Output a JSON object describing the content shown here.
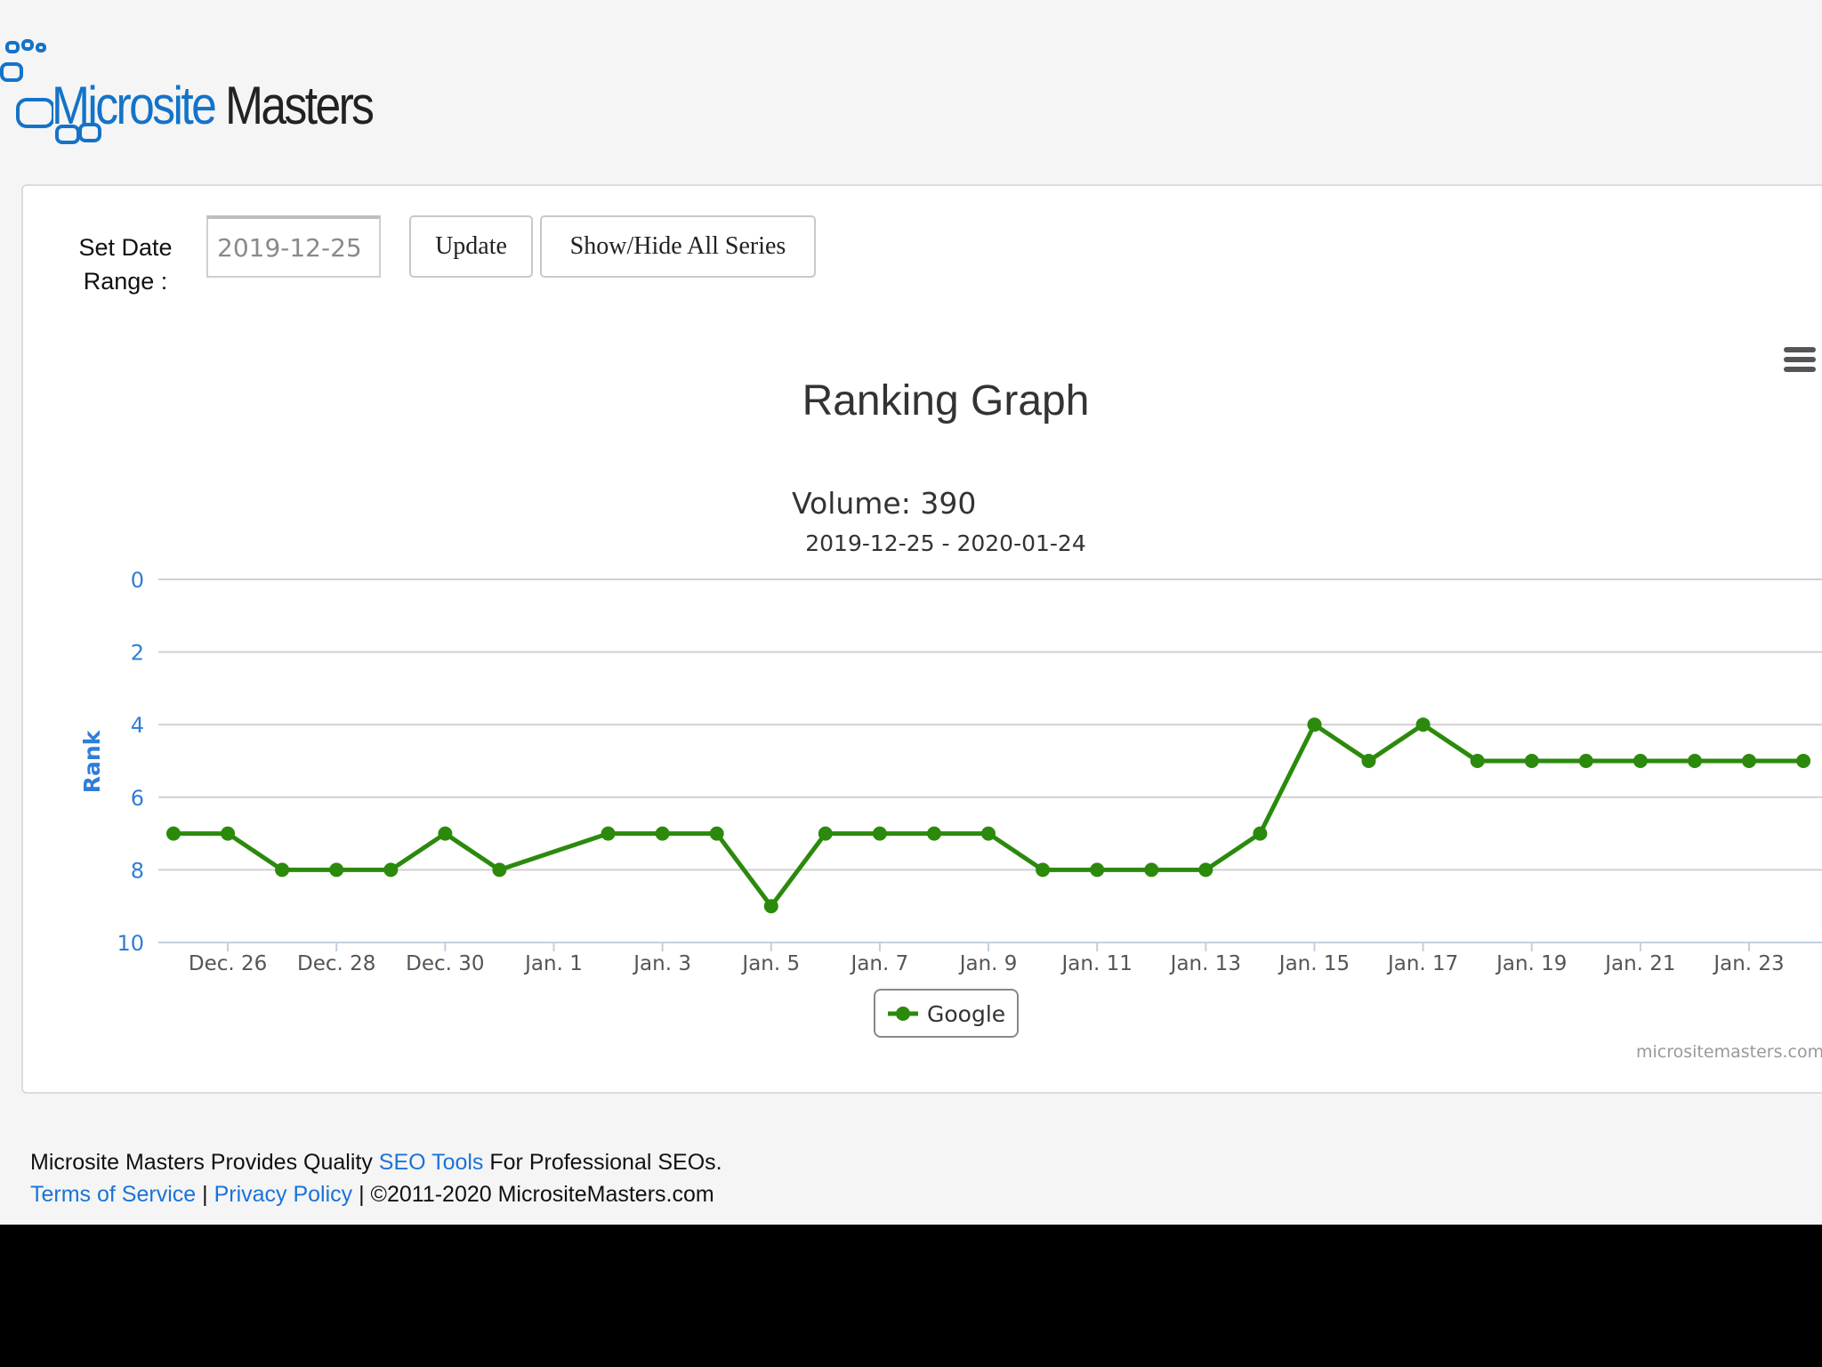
{
  "brand": {
    "name_part1": "Microsite",
    "name_part2": "Masters",
    "primary_color": "#1473c9",
    "text_color": "#222222"
  },
  "controls": {
    "date_label_line1": "Set Date",
    "date_label_line2": "Range :",
    "date_value": "2019-12-25 -",
    "update_label": "Update",
    "toggle_label": "Show/Hide All Series",
    "menu_icon": "hamburger-menu-icon"
  },
  "chart_data": {
    "type": "line",
    "title": "Ranking Graph",
    "subtitle_line1": "Volume: 390",
    "subtitle_line2": "2019-12-25 - 2020-01-24",
    "ylabel": "Rank",
    "xlabel": "",
    "ylim": [
      0,
      10
    ],
    "y_reversed": true,
    "y_ticks": [
      0,
      2,
      4,
      6,
      8,
      10
    ],
    "x_tick_labels": [
      "Dec. 26",
      "Dec. 28",
      "Dec. 30",
      "Jan. 1",
      "Jan. 3",
      "Jan. 5",
      "Jan. 7",
      "Jan. 9",
      "Jan. 11",
      "Jan. 13",
      "Jan. 15",
      "Jan. 17",
      "Jan. 19",
      "Jan. 21",
      "Jan. 23"
    ],
    "x_tick_dates": [
      "2019-12-26",
      "2019-12-28",
      "2019-12-30",
      "2020-01-01",
      "2020-01-03",
      "2020-01-05",
      "2020-01-07",
      "2020-01-09",
      "2020-01-11",
      "2020-01-13",
      "2020-01-15",
      "2020-01-17",
      "2020-01-19",
      "2020-01-21",
      "2020-01-23"
    ],
    "x_range": [
      "2019-12-25",
      "2020-01-24"
    ],
    "grid": true,
    "legend_position": "bottom-center",
    "credits": "micrositemasters.com",
    "series": [
      {
        "name": "Google",
        "color": "#2b8a0c",
        "points": [
          {
            "x": "2019-12-25",
            "y": 7
          },
          {
            "x": "2019-12-26",
            "y": 7
          },
          {
            "x": "2019-12-27",
            "y": 8
          },
          {
            "x": "2019-12-28",
            "y": 8
          },
          {
            "x": "2019-12-29",
            "y": 8
          },
          {
            "x": "2019-12-30",
            "y": 7
          },
          {
            "x": "2019-12-31",
            "y": 8
          },
          {
            "x": "2020-01-02",
            "y": 7
          },
          {
            "x": "2020-01-03",
            "y": 7
          },
          {
            "x": "2020-01-04",
            "y": 7
          },
          {
            "x": "2020-01-05",
            "y": 9
          },
          {
            "x": "2020-01-06",
            "y": 7
          },
          {
            "x": "2020-01-07",
            "y": 7
          },
          {
            "x": "2020-01-08",
            "y": 7
          },
          {
            "x": "2020-01-09",
            "y": 7
          },
          {
            "x": "2020-01-10",
            "y": 8
          },
          {
            "x": "2020-01-11",
            "y": 8
          },
          {
            "x": "2020-01-12",
            "y": 8
          },
          {
            "x": "2020-01-13",
            "y": 8
          },
          {
            "x": "2020-01-14",
            "y": 7
          },
          {
            "x": "2020-01-15",
            "y": 4
          },
          {
            "x": "2020-01-16",
            "y": 5
          },
          {
            "x": "2020-01-17",
            "y": 4
          },
          {
            "x": "2020-01-18",
            "y": 5
          },
          {
            "x": "2020-01-19",
            "y": 5
          },
          {
            "x": "2020-01-20",
            "y": 5
          },
          {
            "x": "2020-01-21",
            "y": 5
          },
          {
            "x": "2020-01-22",
            "y": 5
          },
          {
            "x": "2020-01-23",
            "y": 5
          },
          {
            "x": "2020-01-24",
            "y": 5
          }
        ]
      }
    ]
  },
  "footer": {
    "line1_prefix": "Microsite Masters Provides Quality ",
    "line1_link": "SEO Tools",
    "line1_suffix": " For Professional SEOs.",
    "terms_link": "Terms of Service",
    "separator": " | ",
    "privacy_link": "Privacy Policy",
    "copyright": " | ©2011-2020 MicrositeMasters.com"
  }
}
